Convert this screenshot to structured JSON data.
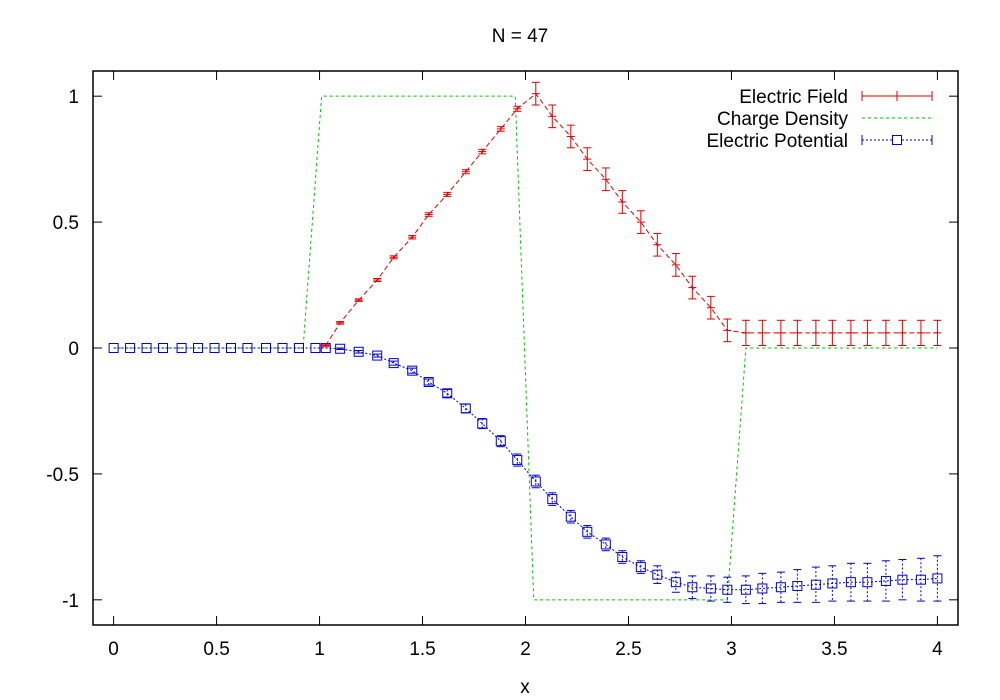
{
  "chart_data": {
    "type": "line",
    "title": "N = 47",
    "xlabel": "x",
    "ylabel": "",
    "xlim": [
      -0.1,
      4.1
    ],
    "ylim": [
      -1.1,
      1.1
    ],
    "xticks": [
      0,
      0.5,
      1,
      1.5,
      2,
      2.5,
      3,
      3.5,
      4
    ],
    "xtick_labels": [
      "0",
      "0.5",
      "1",
      "1.5",
      "2",
      "2.5",
      "3",
      "3.5",
      "4"
    ],
    "yticks": [
      -1,
      -0.5,
      0,
      0.5,
      1
    ],
    "ytick_labels": [
      "-1",
      "-0.5",
      "0",
      "0.5",
      "1"
    ],
    "legend_position": "top-right",
    "series": [
      {
        "name": "Electric Field",
        "color": "#e00000",
        "style": "dashed-errorbars",
        "x": [
          1.03,
          1.1,
          1.19,
          1.28,
          1.36,
          1.45,
          1.53,
          1.62,
          1.71,
          1.79,
          1.88,
          1.96,
          2.05,
          2.13,
          2.22,
          2.3,
          2.39,
          2.47,
          2.56,
          2.64,
          2.73,
          2.81,
          2.9,
          2.98,
          3.07,
          3.15,
          3.24,
          3.32,
          3.41,
          3.49,
          3.58,
          3.66,
          3.75,
          3.83,
          3.92,
          4.0
        ],
        "y": [
          0.01,
          0.1,
          0.19,
          0.27,
          0.36,
          0.44,
          0.53,
          0.61,
          0.7,
          0.78,
          0.87,
          0.95,
          1.01,
          0.92,
          0.84,
          0.75,
          0.67,
          0.58,
          0.5,
          0.41,
          0.33,
          0.24,
          0.16,
          0.07,
          0.06,
          0.06,
          0.06,
          0.06,
          0.06,
          0.06,
          0.06,
          0.06,
          0.06,
          0.06,
          0.06,
          0.06
        ],
        "err": [
          0.005,
          0.005,
          0.005,
          0.006,
          0.006,
          0.007,
          0.007,
          0.008,
          0.008,
          0.009,
          0.009,
          0.01,
          0.045,
          0.045,
          0.045,
          0.045,
          0.045,
          0.045,
          0.045,
          0.045,
          0.045,
          0.045,
          0.045,
          0.045,
          0.05,
          0.05,
          0.05,
          0.05,
          0.05,
          0.05,
          0.05,
          0.05,
          0.05,
          0.05,
          0.05,
          0.05
        ]
      },
      {
        "name": "Charge Density",
        "color": "#00c000",
        "style": "dotted",
        "x": [
          0.0,
          0.92,
          1.01,
          1.95,
          2.04,
          2.98,
          3.07,
          4.0
        ],
        "y": [
          0,
          0,
          1,
          1,
          -1,
          -1,
          0,
          0
        ]
      },
      {
        "name": "Electric Potential",
        "color": "#0000d0",
        "style": "dotted-squares-errorbars",
        "x": [
          0.0,
          0.08,
          0.16,
          0.24,
          0.33,
          0.41,
          0.49,
          0.57,
          0.65,
          0.74,
          0.82,
          0.9,
          0.98,
          1.03,
          1.1,
          1.19,
          1.28,
          1.36,
          1.45,
          1.53,
          1.62,
          1.71,
          1.79,
          1.88,
          1.96,
          2.05,
          2.13,
          2.22,
          2.3,
          2.39,
          2.47,
          2.56,
          2.64,
          2.73,
          2.81,
          2.9,
          2.98,
          3.07,
          3.15,
          3.24,
          3.32,
          3.41,
          3.49,
          3.58,
          3.66,
          3.75,
          3.83,
          3.92,
          4.0
        ],
        "y": [
          0,
          0,
          0,
          0,
          0,
          0,
          0,
          0,
          0,
          0,
          0,
          0,
          0,
          0,
          -0.003,
          -0.015,
          -0.03,
          -0.06,
          -0.09,
          -0.135,
          -0.18,
          -0.24,
          -0.3,
          -0.37,
          -0.445,
          -0.53,
          -0.6,
          -0.67,
          -0.73,
          -0.78,
          -0.83,
          -0.87,
          -0.9,
          -0.93,
          -0.95,
          -0.955,
          -0.96,
          -0.96,
          -0.955,
          -0.95,
          -0.945,
          -0.94,
          -0.935,
          -0.93,
          -0.93,
          -0.925,
          -0.92,
          -0.92,
          -0.915
        ],
        "err": [
          0,
          0,
          0,
          0,
          0,
          0,
          0,
          0,
          0,
          0,
          0,
          0,
          0,
          0,
          0.003,
          0.005,
          0.006,
          0.008,
          0.01,
          0.012,
          0.015,
          0.017,
          0.02,
          0.022,
          0.024,
          0.025,
          0.025,
          0.025,
          0.025,
          0.025,
          0.025,
          0.025,
          0.035,
          0.04,
          0.045,
          0.05,
          0.05,
          0.055,
          0.06,
          0.06,
          0.065,
          0.07,
          0.07,
          0.075,
          0.075,
          0.08,
          0.08,
          0.085,
          0.09
        ]
      }
    ]
  }
}
